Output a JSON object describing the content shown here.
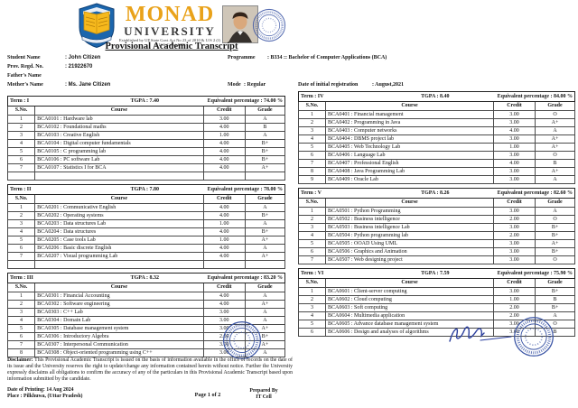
{
  "header": {
    "university_line1": "MONAD",
    "university_line2": "UNIVERSITY",
    "established": "Established by UP State Govt Act No 23 of 2010 & U/S 2 (f) of U.G.C Act 1956",
    "title": "Provisional Academic Transcript"
  },
  "student": {
    "name_label": "Student Name",
    "name_value": ": John Citizen",
    "regd_label": "Prov. Regd. No.",
    "regd_value": ": 21922670",
    "father_label": "Father's Name",
    "mother_label": "Mother's Name",
    "mother_value": ": Ms. Jane Citizen",
    "programme_label": "Programme",
    "programme_value": ": B334 :: Bachelor of Computer Applications (BCA)",
    "mode_label": "Mode",
    "mode_value": ": Regular",
    "regdate_label": "Date of initial registration",
    "regdate_value": ": August,2021"
  },
  "table": {
    "term_label": "Term",
    "tgpa_label": "TGPA",
    "eq_label": "Equivalent percentage",
    "columns": [
      "S.No.",
      "Course",
      "Credit",
      "Grade"
    ]
  },
  "terms": [
    {
      "term": "I",
      "tgpa": "7.40",
      "percentage": "74.00 %",
      "trailing_empty_row": true,
      "rows": [
        [
          "1",
          "BCA0101 :  Hardware lab",
          "3.00",
          "A"
        ],
        [
          "2",
          "BCA0102 :  Foundational maths",
          "4.00",
          "B"
        ],
        [
          "3",
          "BCA0103 :  Creative English",
          "1.00",
          "A"
        ],
        [
          "4",
          "BCA0104 :  Digital computer fundamentals",
          "4.00",
          "B+"
        ],
        [
          "5",
          "BCA0105 :  C programming lab",
          "4.00",
          "B+"
        ],
        [
          "6",
          "BCA0106 :  PC software Lab",
          "4.00",
          "B+"
        ],
        [
          "7",
          "BCA0107 :  Statistics I for BCA",
          "4.00",
          "A+"
        ]
      ]
    },
    {
      "term": "II",
      "tgpa": "7.80",
      "percentage": "78.00 %",
      "trailing_empty_row": true,
      "rows": [
        [
          "1",
          "BCA0201 :  Communicative English",
          "4.00",
          "A"
        ],
        [
          "2",
          "BCA0202 :  Operating systems",
          "4.00",
          "B+"
        ],
        [
          "3",
          "BCA0203 :  Data structures Lab",
          "1.00",
          "A"
        ],
        [
          "4",
          "BCA0204 :  Data structures",
          "4.00",
          "B+"
        ],
        [
          "5",
          "BCA0205 :  Case tools Lab",
          "1.00",
          "A+"
        ],
        [
          "6",
          "BCA0206 :  Basic discrete English",
          "4.00",
          "A"
        ],
        [
          "7",
          "BCA0207 :  Visual programming Lab",
          "4.00",
          "A+"
        ]
      ]
    },
    {
      "term": "III",
      "tgpa": "8.32",
      "percentage": "83.20 %",
      "trailing_empty_row": false,
      "rows": [
        [
          "1",
          "BCA0301 :  Financial Accounting",
          "4.00",
          "A"
        ],
        [
          "2",
          "BCA0302 :  Software engineering",
          "4.00",
          "A+"
        ],
        [
          "3",
          "BCA0303 :  C++ Lab",
          "3.00",
          "A"
        ],
        [
          "4",
          "BCA0304 :  Domain Lab",
          "3.00",
          "A"
        ],
        [
          "5",
          "BCA0305 :  Database management system",
          "3.00",
          "A+"
        ],
        [
          "6",
          "BCA0306 :  Introductory Algebra",
          "2.00",
          "B+"
        ],
        [
          "7",
          "BCA0307 :  Interpersonal Communication",
          "3.00",
          "A+"
        ],
        [
          "8",
          "BCA0308 :  Object-oriented programming using C++",
          "3.00",
          "A"
        ]
      ]
    },
    {
      "term": "IV",
      "tgpa": "8.40",
      "percentage": "84.00 %",
      "trailing_empty_row": false,
      "rows": [
        [
          "1",
          "BCA0401 :  Financial management",
          "3.00",
          "O"
        ],
        [
          "2",
          "BCA0402 :  Programming in Java",
          "3.00",
          "A+"
        ],
        [
          "3",
          "BCA0403 :  Computer networks",
          "4.00",
          "A"
        ],
        [
          "4",
          "BCA0404 :  DBMS project lab",
          "3.00",
          "A+"
        ],
        [
          "5",
          "BCA0405 :  Web Technology Lab",
          "1.00",
          "A+"
        ],
        [
          "6",
          "BCA0406 :  Language Lab",
          "3.00",
          "O"
        ],
        [
          "7",
          "BCA0407 :  Professional English",
          "4.00",
          "B"
        ],
        [
          "8",
          "BCA0408 :  Java Programming Lab",
          "3.00",
          "A+"
        ],
        [
          "9",
          "BCA0409 :  Oracle Lab",
          "3.00",
          "A"
        ]
      ]
    },
    {
      "term": "V",
      "tgpa": "8.26",
      "percentage": "82.60 %",
      "trailing_empty_row": false,
      "rows": [
        [
          "1",
          "BCA0501 :  Python Programming",
          "3.00",
          "A"
        ],
        [
          "2",
          "BCA0502 :  Business intelligence",
          "2.00",
          "O"
        ],
        [
          "3",
          "BCA0503 :  Business intelligence Lab",
          "3.00",
          "B+"
        ],
        [
          "4",
          "BCA0504 :  Python programming lab",
          "2.00",
          "B+"
        ],
        [
          "5",
          "BCA0505 :  OOAD Using UML",
          "3.00",
          "A+"
        ],
        [
          "6",
          "BCA0506 :  Graphics and Animation",
          "3.00",
          "B+"
        ],
        [
          "7",
          "BCA0507 :  Web designing project",
          "3.00",
          "O"
        ]
      ]
    },
    {
      "term": "VI",
      "tgpa": "7.59",
      "percentage": "75.90 %",
      "trailing_empty_row": false,
      "rows": [
        [
          "1",
          "BCA0601 :  Client-server computing",
          "3.00",
          "B+"
        ],
        [
          "2",
          "BCA0602 :  Cloud computing",
          "1.00",
          "B"
        ],
        [
          "3",
          "BCA0603 :  Soft computing",
          "2.00",
          "B+"
        ],
        [
          "4",
          "BCA0604 :  Multimedia application",
          "2.00",
          "A"
        ],
        [
          "5",
          "BCA0605 :  Advance database management system",
          "3.00",
          "O"
        ],
        [
          "6",
          "BCA0606 :  Design and analyses of algorithms",
          "3.00",
          "B"
        ]
      ]
    }
  ],
  "disclaimer": {
    "label": "Disclaimer:",
    "text": "This Provisional Academic Transcript is issued on the basis of information available in the office of records on the date of its issue and the University reserves the right to update/change any information contained herein without notice. Further the University expressly disclaims all obligations to confirm the accuracy of any of the particulars in this Provisional Academic Transcript based upon information submitted by the candidate."
  },
  "footer": {
    "printing": "Date of Printing: 14 Aug 2024",
    "place": "Place : Pilkhuwa, (Uttar Pradesh)",
    "page": "Page 1 of 2",
    "prepared_label": "Prepared By",
    "prepared_value": "IT Cell"
  },
  "colors": {
    "accent_gold": "#e9a21a",
    "stamp_blue": "#3b55a5",
    "logo_blue": "#1b66ad",
    "logo_yellow": "#f6b91d"
  }
}
